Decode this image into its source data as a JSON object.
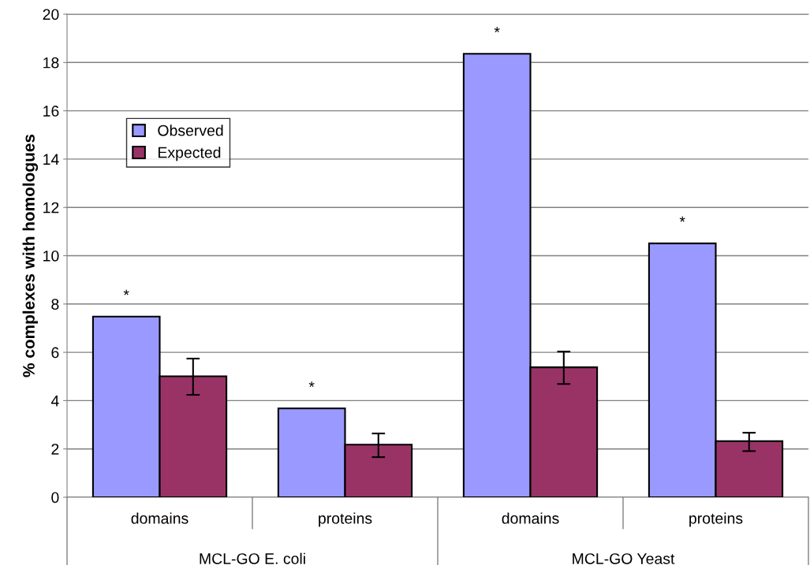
{
  "chart_data": {
    "type": "bar",
    "ylabel": "% complexes with homologues",
    "categories": [
      "domains",
      "proteins",
      "domains",
      "proteins"
    ],
    "series": [
      {
        "name": "Observed",
        "color": "#9999ff",
        "values": [
          7.48,
          3.68,
          18.36,
          10.51
        ],
        "value_labels": [
          "*",
          "*",
          "*",
          "*"
        ]
      },
      {
        "name": "Expected",
        "color": "#993366",
        "values": [
          5.01,
          2.18,
          5.38,
          2.32
        ],
        "errors": [
          [
            4.24,
            5.74
          ],
          [
            1.66,
            2.64
          ],
          [
            4.69,
            6.03
          ],
          [
            1.91,
            2.67
          ]
        ]
      }
    ],
    "annotations": [
      "MCL-GO E. coli",
      "MCL-GO Yeast"
    ],
    "ylim": [
      0,
      20
    ],
    "yticks": [
      0,
      2,
      4,
      6,
      8,
      10,
      12,
      14,
      16,
      18,
      20
    ],
    "grid": "y",
    "legend": "top left"
  }
}
